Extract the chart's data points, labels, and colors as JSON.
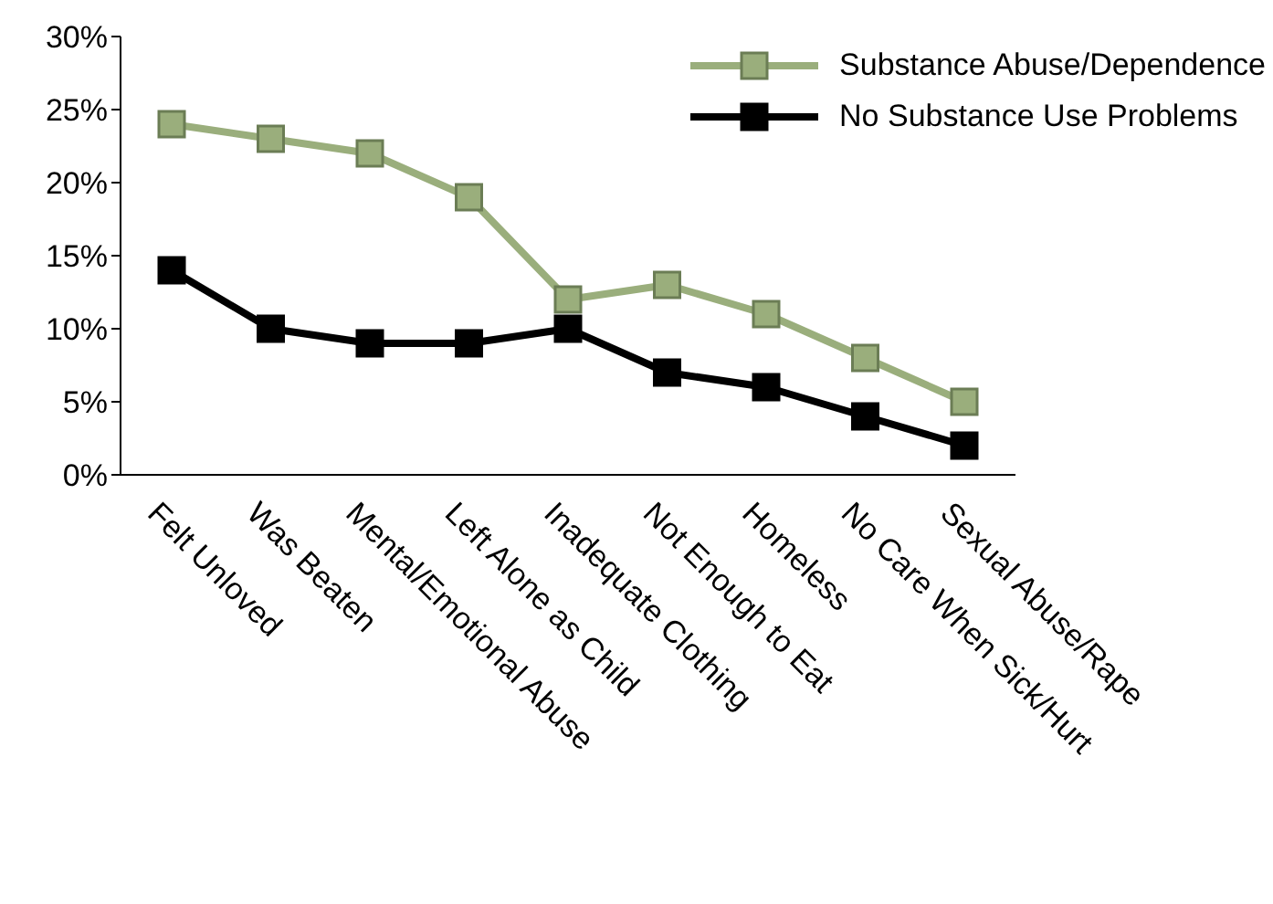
{
  "chart_data": {
    "type": "line",
    "categories": [
      "Felt Unloved",
      "Was Beaten",
      "Mental/Emotional Abuse",
      "Left Alone as Child",
      "Inadequate Clothing",
      "Not Enough to Eat",
      "Homeless",
      "No Care When Sick/Hurt",
      "Sexual Abuse/Rape"
    ],
    "series": [
      {
        "name": "Substance Abuse/Dependence",
        "color": "#9aae7c",
        "values": [
          24,
          23,
          22,
          19,
          12,
          13,
          11,
          8,
          5
        ]
      },
      {
        "name": "No Substance Use Problems",
        "color": "#000000",
        "values": [
          14,
          10,
          9,
          9,
          10,
          7,
          6,
          4,
          2
        ]
      }
    ],
    "ylim": [
      0,
      30
    ],
    "yticks": [
      {
        "value": 0,
        "label": "0%"
      },
      {
        "value": 5,
        "label": "5%"
      },
      {
        "value": 10,
        "label": "10%"
      },
      {
        "value": 15,
        "label": "15%"
      },
      {
        "value": 20,
        "label": "20%"
      },
      {
        "value": 25,
        "label": "25%"
      },
      {
        "value": 30,
        "label": "30%"
      }
    ],
    "grid": false,
    "legend": "top right",
    "marker": "square",
    "line_style": "solid"
  }
}
